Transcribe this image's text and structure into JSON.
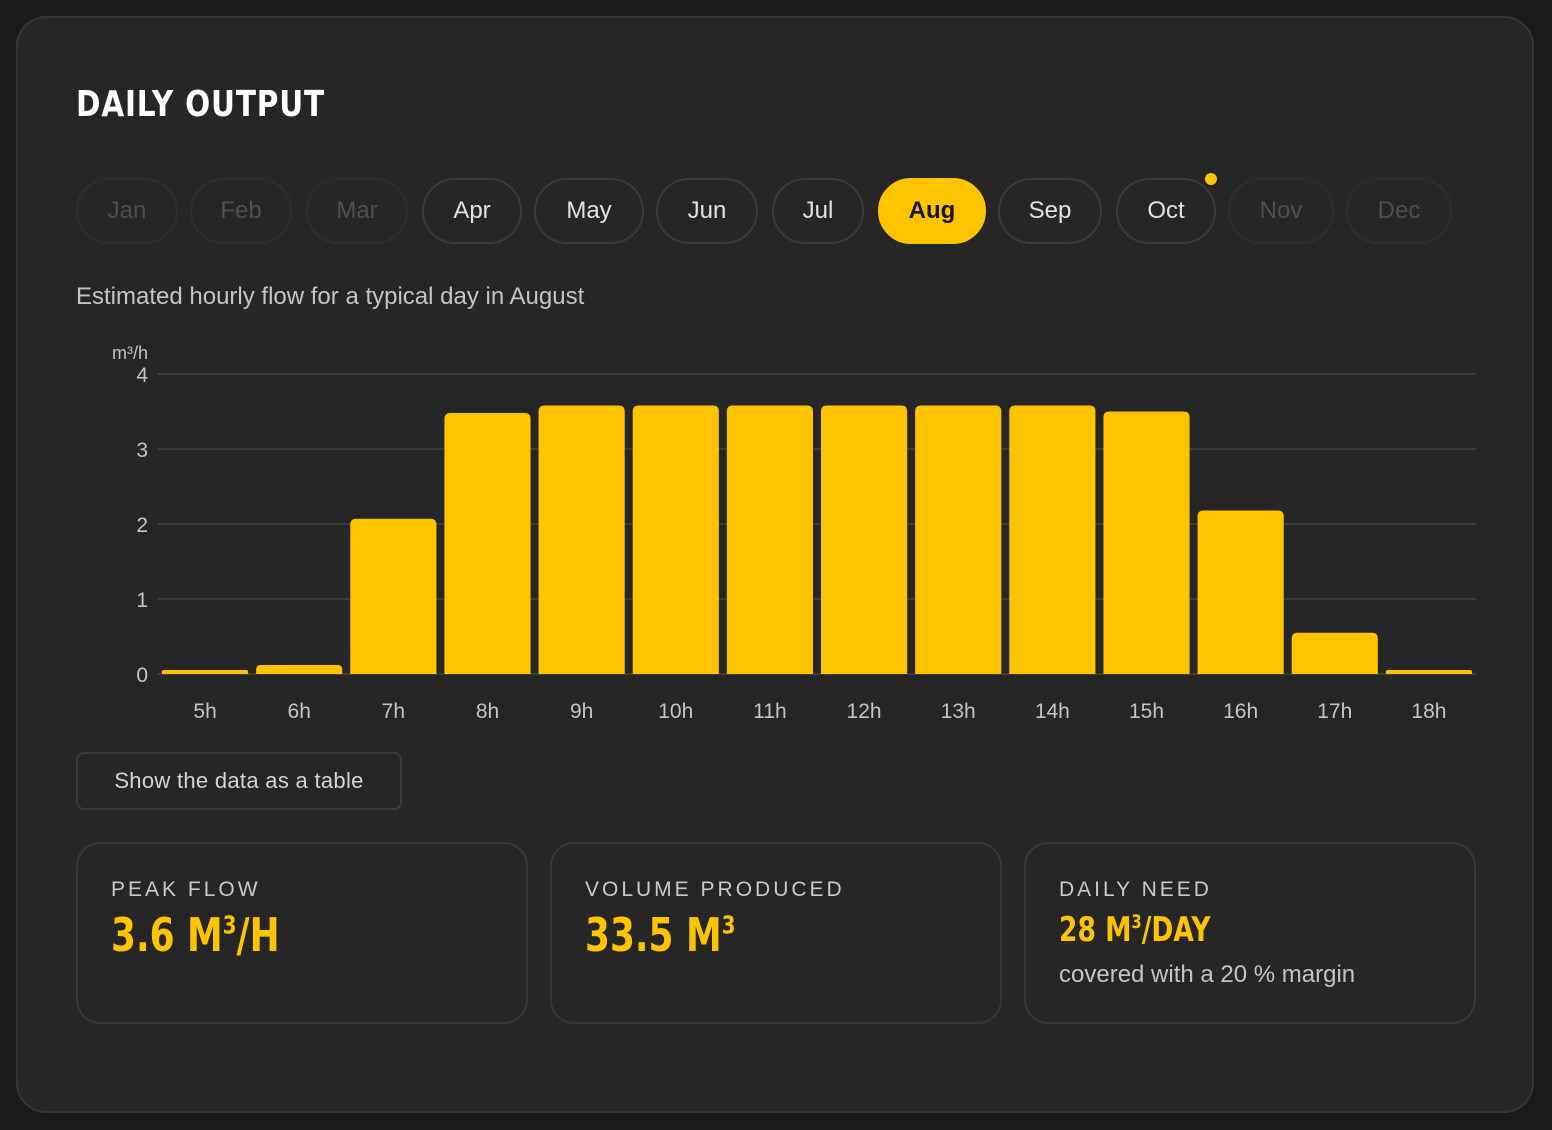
{
  "title": "DAILY OUTPUT",
  "months": [
    {
      "label": "Jan",
      "state": "disabled"
    },
    {
      "label": "Feb",
      "state": "disabled"
    },
    {
      "label": "Mar",
      "state": "disabled"
    },
    {
      "label": "Apr",
      "state": "normal"
    },
    {
      "label": "May",
      "state": "normal"
    },
    {
      "label": "Jun",
      "state": "normal"
    },
    {
      "label": "Jul",
      "state": "normal"
    },
    {
      "label": "Aug",
      "state": "active"
    },
    {
      "label": "Sep",
      "state": "normal"
    },
    {
      "label": "Oct",
      "state": "normal",
      "indicator_dot": true
    },
    {
      "label": "Nov",
      "state": "disabled"
    },
    {
      "label": "Dec",
      "state": "disabled"
    }
  ],
  "subtitle": "Estimated hourly flow for a typical day in August",
  "chart_data": {
    "type": "bar",
    "ylabel": "m³/h",
    "ylim": [
      0,
      4
    ],
    "yticks": [
      0,
      1,
      2,
      3,
      4
    ],
    "grid": true,
    "categories": [
      "5h",
      "6h",
      "7h",
      "8h",
      "9h",
      "10h",
      "11h",
      "12h",
      "13h",
      "14h",
      "15h",
      "16h",
      "17h",
      "18h"
    ],
    "values": [
      0.05,
      0.12,
      2.07,
      3.48,
      3.58,
      3.58,
      3.58,
      3.58,
      3.58,
      3.58,
      3.5,
      2.18,
      0.55,
      0.05
    ],
    "bar_color": "#ffc400"
  },
  "table_button": "Show the data as a table",
  "stats": [
    {
      "label": "PEAK FLOW",
      "number": "3.6",
      "unit": "M",
      "sup": "3",
      "suffix": "/H"
    },
    {
      "label": "VOLUME PRODUCED",
      "number": "33.5",
      "unit": "M",
      "sup": "3",
      "suffix": ""
    },
    {
      "label": "DAILY NEED",
      "number": "28",
      "unit": "M",
      "sup": "3",
      "suffix": "/DAY",
      "note": "covered with a 20 % margin"
    }
  ],
  "colors": {
    "accent": "#ffc400",
    "background": "#1a1a1a",
    "card": "#262626"
  }
}
